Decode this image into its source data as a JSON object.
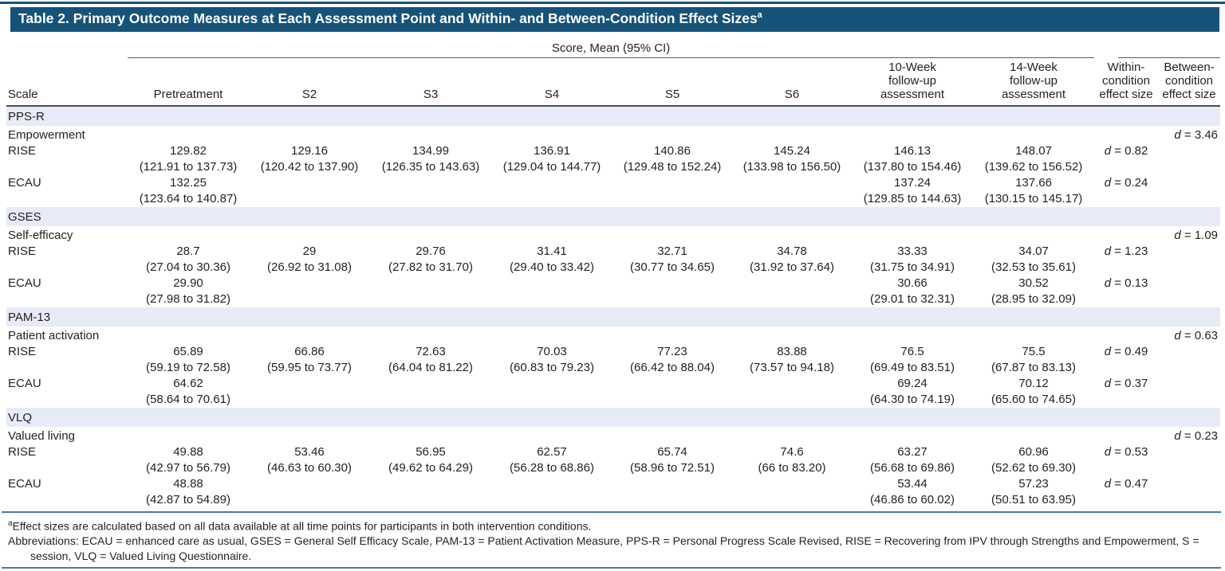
{
  "table": {
    "title": "Table 2. Primary Outcome Measures at Each Assessment Point and Within- and Between-Condition Effect Sizes",
    "title_footnote_marker": "a",
    "score_group_header": "Score, Mean (95% CI)",
    "effect_label": "d",
    "effect_separator": " = ",
    "columns": {
      "scale": "Scale",
      "pretreatment": "Pretreatment",
      "s2": "S2",
      "s3": "S3",
      "s4": "S4",
      "s5": "S5",
      "s6": "S6",
      "week10_followup": "10-Week follow-up assessment",
      "week14_followup": "14-Week follow-up assessment",
      "within_condition": "Within-condition effect size",
      "between_condition": "Between-condition effect size"
    },
    "sections": [
      {
        "scale": "PPS-R",
        "outcome": "Empowerment",
        "between_condition_effect": "3.46",
        "conditions": [
          {
            "name": "RISE",
            "within_condition_effect": "0.82",
            "scores": [
              {
                "mean": "129.82",
                "ci": "(121.91 to 137.73)"
              },
              {
                "mean": "129.16",
                "ci": "(120.42 to 137.90)"
              },
              {
                "mean": "134.99",
                "ci": "(126.35 to 143.63)"
              },
              {
                "mean": "136.91",
                "ci": "(129.04 to 144.77)"
              },
              {
                "mean": "140.86",
                "ci": "(129.48 to 152.24)"
              },
              {
                "mean": "145.24",
                "ci": "(133.98 to 156.50)"
              },
              {
                "mean": "146.13",
                "ci": "(137.80 to 154.46)"
              },
              {
                "mean": "148.07",
                "ci": "(139.62 to 156.52)"
              }
            ]
          },
          {
            "name": "ECAU",
            "within_condition_effect": "0.24",
            "scores": [
              {
                "mean": "132.25",
                "ci": "(123.64 to 140.87)"
              },
              null,
              null,
              null,
              null,
              null,
              {
                "mean": "137.24",
                "ci": "(129.85 to 144.63)"
              },
              {
                "mean": "137.66",
                "ci": "(130.15 to 145.17)"
              }
            ]
          }
        ]
      },
      {
        "scale": "GSES",
        "outcome": "Self-efficacy",
        "between_condition_effect": "1.09",
        "conditions": [
          {
            "name": "RISE",
            "within_condition_effect": "1.23",
            "scores": [
              {
                "mean": "28.7",
                "ci": "(27.04 to 30.36)"
              },
              {
                "mean": "29",
                "ci": "(26.92 to 31.08)"
              },
              {
                "mean": "29.76",
                "ci": "(27.82 to 31.70)"
              },
              {
                "mean": "31.41",
                "ci": "(29.40 to 33.42)"
              },
              {
                "mean": "32.71",
                "ci": "(30.77 to 34.65)"
              },
              {
                "mean": "34.78",
                "ci": "(31.92 to 37.64)"
              },
              {
                "mean": "33.33",
                "ci": "(31.75 to 34.91)"
              },
              {
                "mean": "34.07",
                "ci": "(32.53 to 35.61)"
              }
            ]
          },
          {
            "name": "ECAU",
            "within_condition_effect": "0.13",
            "scores": [
              {
                "mean": "29.90",
                "ci": "(27.98 to 31.82)"
              },
              null,
              null,
              null,
              null,
              null,
              {
                "mean": "30.66",
                "ci": "(29.01 to 32.31)"
              },
              {
                "mean": "30.52",
                "ci": "(28.95 to 32.09)"
              }
            ]
          }
        ]
      },
      {
        "scale": "PAM-13",
        "outcome": "Patient activation",
        "between_condition_effect": "0.63",
        "conditions": [
          {
            "name": "RISE",
            "within_condition_effect": "0.49",
            "scores": [
              {
                "mean": "65.89",
                "ci": "(59.19 to 72.58)"
              },
              {
                "mean": "66.86",
                "ci": "(59.95 to 73.77)"
              },
              {
                "mean": "72.63",
                "ci": "(64.04 to 81.22)"
              },
              {
                "mean": "70.03",
                "ci": "(60.83 to 79.23)"
              },
              {
                "mean": "77.23",
                "ci": "(66.42 to 88.04)"
              },
              {
                "mean": "83.88",
                "ci": "(73.57 to 94.18)"
              },
              {
                "mean": "76.5",
                "ci": "(69.49 to 83.51)"
              },
              {
                "mean": "75.5",
                "ci": "(67.87 to 83.13)"
              }
            ]
          },
          {
            "name": "ECAU",
            "within_condition_effect": "0.37",
            "scores": [
              {
                "mean": "64.62",
                "ci": "(58.64 to 70.61)"
              },
              null,
              null,
              null,
              null,
              null,
              {
                "mean": "69.24",
                "ci": "(64.30 to 74.19)"
              },
              {
                "mean": "70.12",
                "ci": "(65.60 to 74.65)"
              }
            ]
          }
        ]
      },
      {
        "scale": "VLQ",
        "outcome": "Valued living",
        "between_condition_effect": "0.23",
        "conditions": [
          {
            "name": "RISE",
            "within_condition_effect": "0.53",
            "scores": [
              {
                "mean": "49.88",
                "ci": "(42.97 to 56.79)"
              },
              {
                "mean": "53.46",
                "ci": "(46.63 to 60.30)"
              },
              {
                "mean": "56.95",
                "ci": "(49.62 to 64.29)"
              },
              {
                "mean": "62.57",
                "ci": "(56.28 to 68.86)"
              },
              {
                "mean": "65.74",
                "ci": "(58.96 to 72.51)"
              },
              {
                "mean": "74.6",
                "ci": "(66 to 83.20)"
              },
              {
                "mean": "63.27",
                "ci": "(56.68 to 69.86)"
              },
              {
                "mean": "60.96",
                "ci": "(52.62 to 69.30)"
              }
            ]
          },
          {
            "name": "ECAU",
            "within_condition_effect": "0.47",
            "scores": [
              {
                "mean": "48.88",
                "ci": "(42.87 to 54.89)"
              },
              null,
              null,
              null,
              null,
              null,
              {
                "mean": "53.44",
                "ci": "(46.86 to 60.02)"
              },
              {
                "mean": "57.23",
                "ci": "(50.51 to 63.95)"
              }
            ]
          }
        ]
      }
    ],
    "footnote": {
      "marker": "a",
      "text": "Effect sizes are calculated based on all data available at all time points for participants in both intervention conditions."
    },
    "abbreviations": "Abbreviations: ECAU = enhanced care as usual, GSES = General Self Efficacy Scale, PAM-13 = Patient Activation Measure, PPS-R = Personal Progress Scale Revised, RISE = Recovering from IPV through Strengths and Empowerment, S = session, VLQ = Valued Living Questionnaire."
  }
}
